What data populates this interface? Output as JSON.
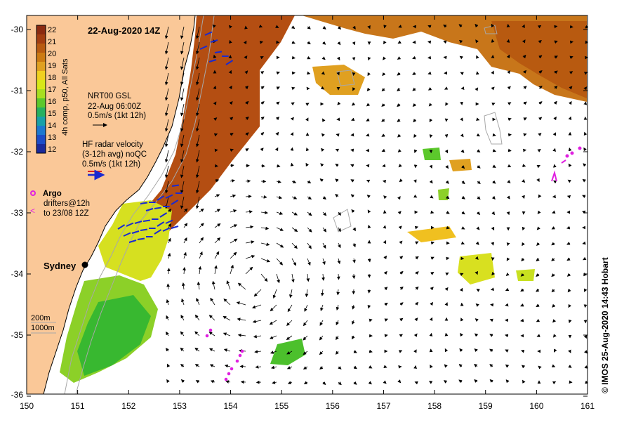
{
  "title": "22-Aug-2020 14Z",
  "credit": "© IMOS 25-Aug-2020 14:43 Hobart",
  "colorbar": {
    "label": "4h comp, p50, All Sats",
    "ticks": [
      "22",
      "21",
      "20",
      "19",
      "18",
      "17",
      "16",
      "15",
      "14",
      "13",
      "12"
    ],
    "colors": [
      "#8b2a10",
      "#a33d10",
      "#b85a10",
      "#cc7a12",
      "#e0a020",
      "#f0d020",
      "#d8e818",
      "#a8de20",
      "#5cc82c",
      "#26b060",
      "#18a0a8",
      "#1c78d0",
      "#1c4cc8",
      "#1a2a9c"
    ]
  },
  "legend": {
    "gsl_title": "NRT00 GSL",
    "gsl_time": "22-Aug 06:00Z",
    "gsl_scale": "0.5m/s (1kt 12h)",
    "hf_title": "HF radar velocity",
    "hf_avg": "(3-12h avg) noQC",
    "hf_scale": "0.5m/s (1kt 12h)",
    "argo": "Argo",
    "drifters_1": "drifters@12h",
    "drifters_2": "to 23/08 12Z"
  },
  "city": "Sydney",
  "bathy": {
    "contour_1": "200m",
    "contour_2": "1000m"
  },
  "axes": {
    "x_ticks": [
      "150",
      "151",
      "152",
      "153",
      "154",
      "155",
      "156",
      "157",
      "158",
      "159",
      "160",
      "161"
    ],
    "y_ticks": [
      "-30",
      "-31",
      "-32",
      "-33",
      "-34",
      "-35",
      "-36"
    ]
  },
  "colors": {
    "land": "#fac898",
    "frame": "#000000"
  }
}
